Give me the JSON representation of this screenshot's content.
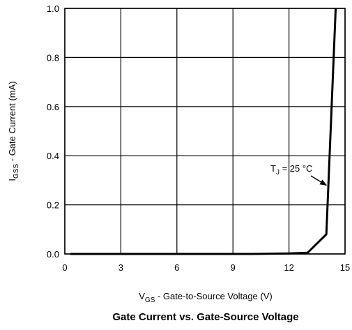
{
  "chart_data": {
    "type": "line",
    "title": "Gate Current vs. Gate-Source Voltage",
    "xlabel": {
      "main": "V",
      "sub": "GS",
      "rest": " - Gate-to-Source Voltage (V)"
    },
    "ylabel": {
      "main": "I",
      "sub": "GSS",
      "rest": " - Gate Current (mA)"
    },
    "xlim": [
      0,
      15
    ],
    "ylim": [
      0,
      1.0
    ],
    "x_ticks": [
      "0",
      "3",
      "6",
      "9",
      "12",
      "15"
    ],
    "y_ticks": [
      "0.0",
      "0.2",
      "0.4",
      "0.6",
      "0.8",
      "1.0"
    ],
    "grid": true,
    "series": [
      {
        "x": [
          0.3,
          10,
          12,
          13,
          14,
          14.5
        ],
        "y": [
          0.0,
          0.0,
          0.002,
          0.005,
          0.08,
          1.0
        ]
      }
    ],
    "annotation": {
      "main": "T",
      "sub": "J",
      "rest": " = 25 °C",
      "arrow_tip": [
        14.0,
        0.28
      ]
    },
    "line_color": "#000000"
  }
}
